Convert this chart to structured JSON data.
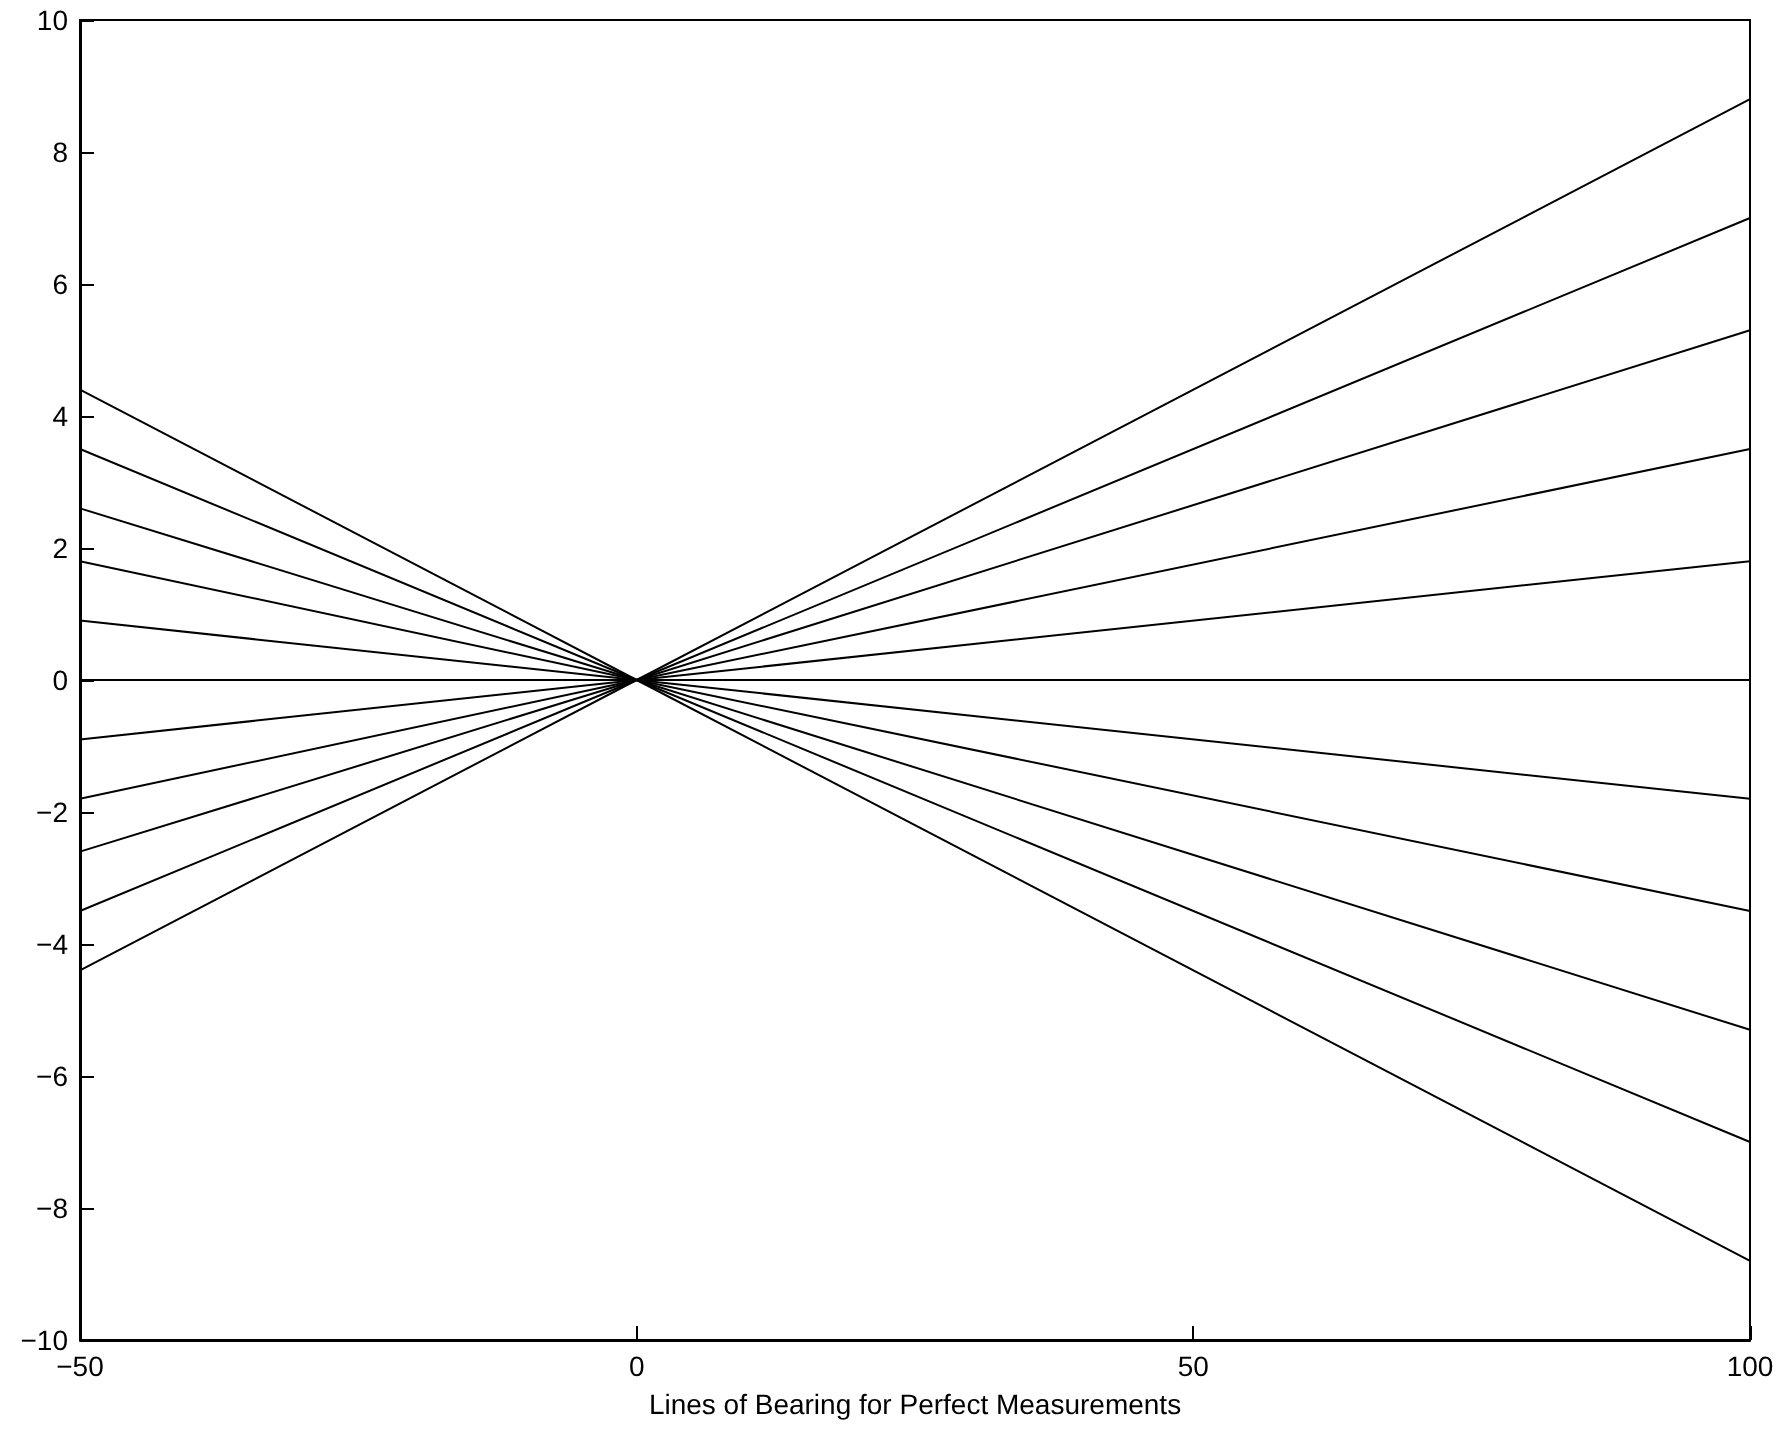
{
  "chart_data": {
    "type": "line",
    "xlabel": "Lines of Bearing for Perfect Measurements",
    "xlim": [
      -50,
      100
    ],
    "xticks": [
      -50,
      0,
      50,
      100
    ],
    "ylim": [
      -10,
      10
    ],
    "yticks": [
      -10,
      -8,
      -6,
      -4,
      -2,
      0,
      2,
      4,
      6,
      8,
      10
    ],
    "grid": false,
    "marker": "none",
    "line_style": "solid",
    "series": [
      {
        "color": "#000000",
        "x": [
          -50,
          0,
          100
        ],
        "values": [
          4.4,
          0,
          -8.8
        ]
      },
      {
        "color": "#000000",
        "x": [
          -50,
          0,
          100
        ],
        "values": [
          3.5,
          0,
          -7
        ]
      },
      {
        "color": "#000000",
        "x": [
          -50,
          0,
          100
        ],
        "values": [
          2.6,
          0,
          -5.3
        ]
      },
      {
        "color": "#000000",
        "x": [
          -50,
          0,
          100
        ],
        "values": [
          1.8,
          0,
          -3.5
        ]
      },
      {
        "color": "#000000",
        "x": [
          -50,
          0,
          100
        ],
        "values": [
          0.9,
          0,
          -1.8
        ]
      },
      {
        "color": "#000000",
        "x": [
          -50,
          0,
          100
        ],
        "values": [
          0,
          0,
          0
        ]
      },
      {
        "color": "#000000",
        "x": [
          -50,
          0,
          100
        ],
        "values": [
          -0.9,
          0,
          1.8
        ]
      },
      {
        "color": "#000000",
        "x": [
          -50,
          0,
          100
        ],
        "values": [
          -1.8,
          0,
          3.5
        ]
      },
      {
        "color": "#000000",
        "x": [
          -50,
          0,
          100
        ],
        "values": [
          -2.6,
          0,
          5.3
        ]
      },
      {
        "color": "#000000",
        "x": [
          -50,
          0,
          100
        ],
        "values": [
          -3.5,
          0,
          7
        ]
      },
      {
        "color": "#000000",
        "x": [
          -50,
          0,
          100
        ],
        "values": [
          -4.4,
          0,
          8.8
        ]
      }
    ]
  }
}
